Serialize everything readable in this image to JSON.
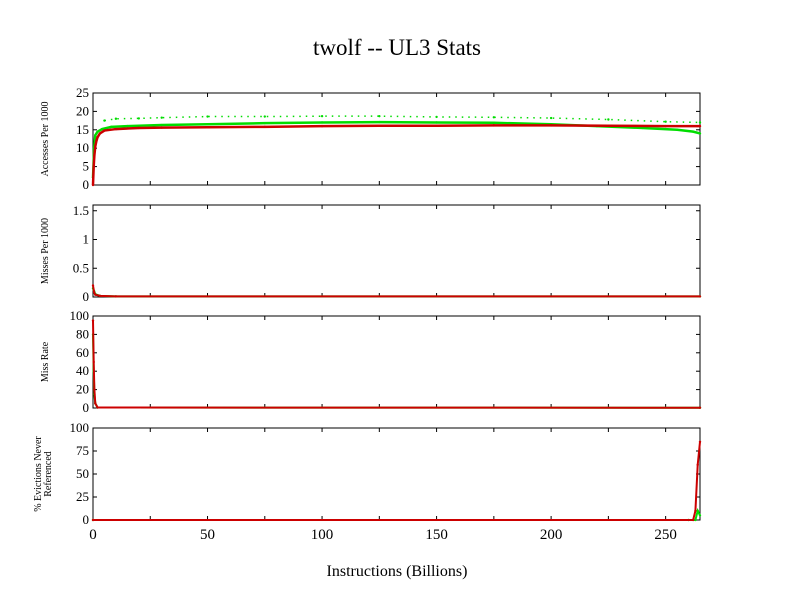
{
  "chart_data": {
    "title": "twolf -- UL3  Stats",
    "xlabel": "Instructions (Billions)",
    "xlim": [
      0,
      265
    ],
    "xticks": [
      0,
      50,
      100,
      150,
      200,
      250
    ],
    "colors": {
      "green": "#00dd00",
      "red": "#cc0000",
      "axis": "#000000"
    },
    "panels": [
      {
        "type": "scatter",
        "ylabel": [
          "Accesses Per 1000"
        ],
        "ylim": [
          0,
          25
        ],
        "yticks": [
          "0",
          "5",
          "10",
          "15",
          "20",
          "25"
        ],
        "series": [
          {
            "color": "green",
            "x": [
              0,
              0.5,
              1,
              2,
              4,
              8,
              15,
              30,
              50,
              75,
              100,
              125,
              150,
              175,
              200,
              220,
              240,
              255,
              262,
              265
            ],
            "y": [
              2,
              10,
              13.5,
              14.5,
              15.2,
              15.8,
              16,
              16.3,
              16.5,
              16.8,
              17,
              17.1,
              17,
              16.9,
              16.5,
              16,
              15.5,
              15,
              14.5,
              14
            ]
          },
          {
            "color": "green",
            "x": [
              5,
              10,
              20,
              30,
              50,
              75,
              100,
              125,
              150,
              175,
              200,
              225,
              250,
              265
            ],
            "y": [
              17.5,
              18,
              18.1,
              18.3,
              18.6,
              18.6,
              18.7,
              18.7,
              18.5,
              18.4,
              18.2,
              17.8,
              17.2,
              17
            ]
          },
          {
            "color": "red",
            "x": [
              0,
              0.3,
              0.6,
              1,
              1.5,
              2,
              3,
              5,
              10,
              20,
              30,
              50,
              75,
              100,
              125,
              150,
              175,
              200,
              225,
              250,
              265
            ],
            "y": [
              0,
              5,
              8,
              10.5,
              12,
              13,
              14,
              14.8,
              15.2,
              15.5,
              15.6,
              15.7,
              15.8,
              16,
              16.1,
              16.1,
              16.2,
              16.2,
              16.1,
              16,
              16
            ]
          }
        ]
      },
      {
        "type": "line",
        "ylabel": [
          "Misses Per 1000"
        ],
        "ylim": [
          0,
          1.6
        ],
        "yticks": [
          "0",
          "0.5",
          "1",
          "1.5"
        ],
        "series": [
          {
            "color": "green",
            "x": [
              0,
              0.5,
              1,
              3,
              10,
              265
            ],
            "y": [
              0.15,
              0.1,
              0.05,
              0.02,
              0.01,
              0.01
            ]
          },
          {
            "color": "red",
            "x": [
              0,
              0.5,
              1,
              3,
              10,
              265
            ],
            "y": [
              0.2,
              0.08,
              0.04,
              0.02,
              0.01,
              0.01
            ]
          }
        ]
      },
      {
        "type": "line",
        "ylabel": [
          "Miss Rate"
        ],
        "ylim": [
          0,
          100
        ],
        "yticks": [
          "0",
          "20",
          "40",
          "60",
          "80",
          "100"
        ],
        "series": [
          {
            "color": "green",
            "x": [
              0,
              0.3,
              0.6,
              1,
              2,
              265
            ],
            "y": [
              80,
              40,
              15,
              5,
              0.5,
              0.3
            ]
          },
          {
            "color": "red",
            "x": [
              0,
              0.3,
              0.6,
              1,
              2,
              265
            ],
            "y": [
              95,
              50,
              20,
              5,
              0.5,
              0.3
            ]
          }
        ]
      },
      {
        "type": "line",
        "ylabel": [
          "% Evictions Never",
          "Referenced"
        ],
        "ylim": [
          0,
          100
        ],
        "yticks": [
          "0",
          "25",
          "50",
          "75",
          "100"
        ],
        "series": [
          {
            "color": "green",
            "x": [
              0,
              260,
              263,
              264,
              265
            ],
            "y": [
              0,
              0,
              0,
              10,
              5
            ]
          },
          {
            "color": "red",
            "x": [
              0,
              262,
              263,
              264,
              265
            ],
            "y": [
              0,
              0,
              10,
              60,
              85
            ]
          }
        ]
      }
    ]
  }
}
